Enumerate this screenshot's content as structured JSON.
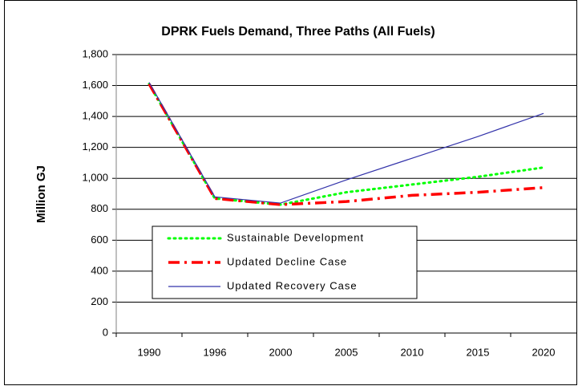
{
  "chart_data": {
    "type": "line",
    "title": "DPRK Fuels Demand, Three Paths (All Fuels)",
    "y_label": "Million GJ",
    "categories": [
      "1990",
      "1996",
      "2000",
      "2005",
      "2010",
      "2015",
      "2020"
    ],
    "series": [
      {
        "name": "Sustainable Development",
        "color": "#00ff00",
        "style": "dotted",
        "values": [
          1610,
          870,
          830,
          910,
          960,
          1010,
          1070
        ]
      },
      {
        "name": "Updated Decline Case",
        "color": "#ff0000",
        "style": "dashdot",
        "values": [
          1610,
          870,
          830,
          850,
          890,
          910,
          940
        ]
      },
      {
        "name": "Updated Recovery Case",
        "color": "#3333aa",
        "style": "solid",
        "values": [
          1620,
          880,
          840,
          990,
          1130,
          1270,
          1420
        ]
      }
    ],
    "ylim": [
      0,
      1800
    ],
    "yticks": [
      0,
      200,
      400,
      600,
      800,
      {
        "value": 1000,
        "label": "1,000"
      },
      {
        "value": 1200,
        "label": "1,200"
      },
      {
        "value": 1400,
        "label": "1,400"
      },
      {
        "value": 1600,
        "label": "1,600"
      },
      {
        "value": 1800,
        "label": "1,800"
      }
    ],
    "grid": true,
    "legend": "lower left"
  }
}
